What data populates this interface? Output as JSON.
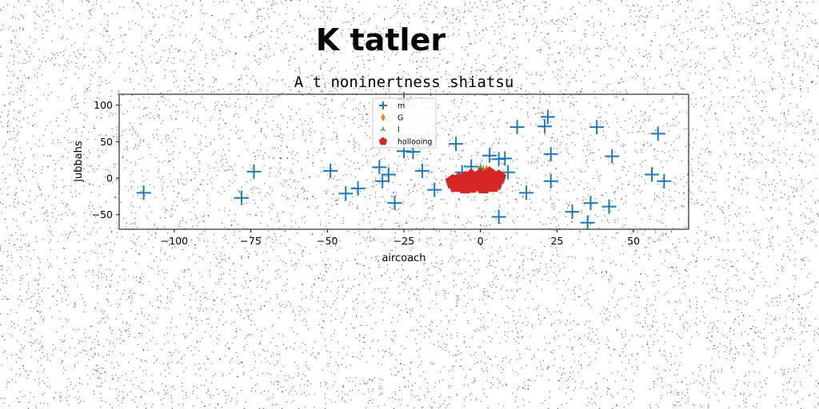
{
  "chart_data": {
    "type": "scatter",
    "title": "K tatler",
    "subtitle": "A t noninertness shiatsu",
    "xlabel": "aircoach",
    "ylabel": "jubbahs",
    "xlim": [
      -118,
      68
    ],
    "ylim": [
      -70,
      115
    ],
    "xticks": [
      -100,
      -75,
      -50,
      -25,
      0,
      25,
      50
    ],
    "xtick_labels": [
      "−100",
      "−75",
      "−50",
      "−25",
      "0",
      "25",
      "50"
    ],
    "yticks": [
      -50,
      0,
      50,
      100
    ],
    "ytick_labels": [
      "−50",
      "0",
      "50",
      "100"
    ],
    "grid": false,
    "legend_position": "top-center",
    "series": [
      {
        "name": "m",
        "marker": "plus",
        "color": "#1f77b4",
        "points": [
          [
            -110,
            -20
          ],
          [
            -78,
            -27
          ],
          [
            -74,
            9
          ],
          [
            -49,
            10
          ],
          [
            -44,
            -21
          ],
          [
            -40,
            -14
          ],
          [
            -33,
            15
          ],
          [
            -32,
            -4
          ],
          [
            -30,
            5
          ],
          [
            -28,
            -34
          ],
          [
            -25,
            108
          ],
          [
            -25,
            37
          ],
          [
            -22,
            36
          ],
          [
            -19,
            10
          ],
          [
            -15,
            -16
          ],
          [
            -8,
            47
          ],
          [
            -6,
            8
          ],
          [
            -3,
            16
          ],
          [
            3,
            31
          ],
          [
            6,
            -53
          ],
          [
            6,
            26
          ],
          [
            8,
            27
          ],
          [
            9,
            8
          ],
          [
            12,
            70
          ],
          [
            15,
            -20
          ],
          [
            21,
            71
          ],
          [
            22,
            84
          ],
          [
            23,
            -4
          ],
          [
            23,
            33
          ],
          [
            30,
            -46
          ],
          [
            35,
            -61
          ],
          [
            36,
            -34
          ],
          [
            38,
            70
          ],
          [
            42,
            -39
          ],
          [
            43,
            30
          ],
          [
            56,
            5
          ],
          [
            58,
            61
          ],
          [
            60,
            -4
          ]
        ]
      },
      {
        "name": "G",
        "marker": "thin_diamond",
        "color": "#ff7f0e",
        "points": [
          [
            0,
            13
          ],
          [
            2,
            12
          ],
          [
            3,
            10
          ]
        ]
      },
      {
        "name": "l",
        "marker": "tri",
        "color": "#2ca02c",
        "points": [
          [
            0,
            15
          ],
          [
            1,
            13
          ]
        ]
      },
      {
        "name": "hollooing",
        "marker": "pentagon",
        "color": "#d62728",
        "points": [
          [
            -9,
            -5
          ],
          [
            -8,
            -10
          ],
          [
            -7,
            -3
          ],
          [
            -6,
            -8
          ],
          [
            -5,
            -12
          ],
          [
            -5,
            -1
          ],
          [
            -4,
            -6
          ],
          [
            -3,
            2
          ],
          [
            -3,
            -11
          ],
          [
            -2,
            -4
          ],
          [
            -1,
            0
          ],
          [
            -1,
            -9
          ],
          [
            0,
            -6
          ],
          [
            0,
            3
          ],
          [
            1,
            -12
          ],
          [
            1,
            -2
          ],
          [
            2,
            1
          ],
          [
            2,
            -8
          ],
          [
            3,
            5
          ],
          [
            3,
            -5
          ],
          [
            4,
            -10
          ],
          [
            4,
            2
          ],
          [
            5,
            -3
          ],
          [
            5,
            -7
          ],
          [
            6,
            1
          ]
        ]
      }
    ]
  }
}
